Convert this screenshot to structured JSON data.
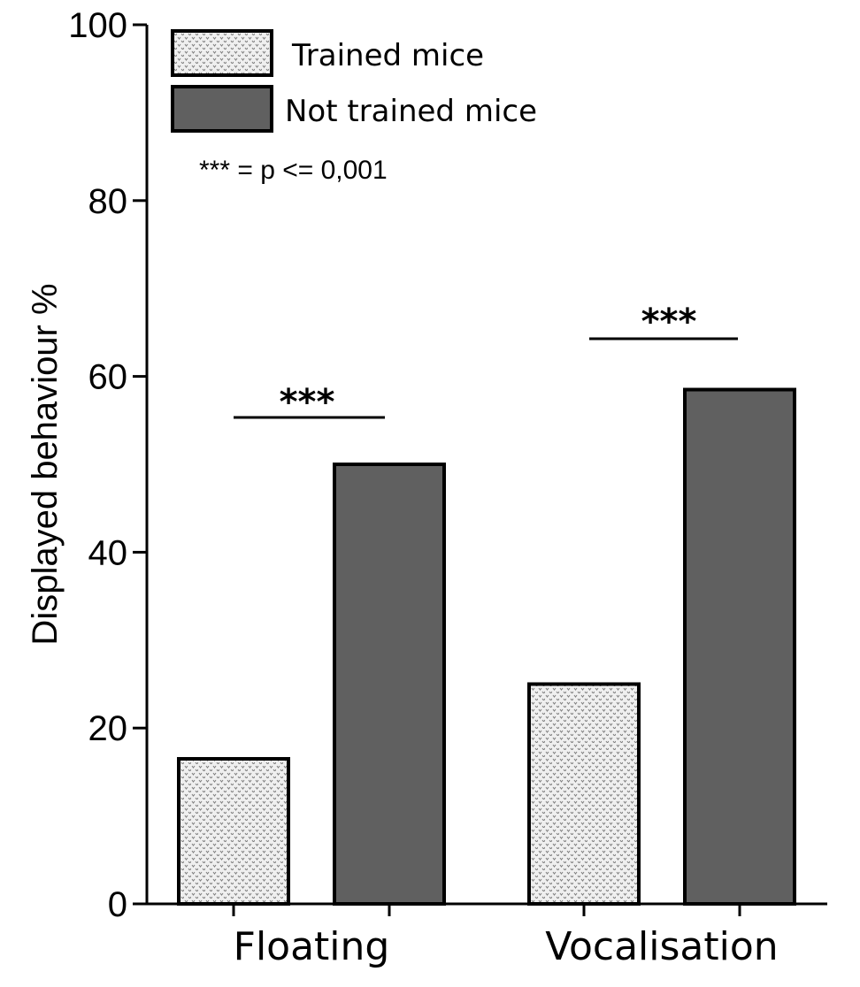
{
  "chart_data": {
    "type": "bar",
    "title": "",
    "xlabel": "",
    "ylabel": "Displayed behaviour %",
    "ylim": [
      0,
      100
    ],
    "yticks": [
      "0",
      "20",
      "40",
      "60",
      "80",
      "100"
    ],
    "categories": [
      "Floating",
      "Vocalisation"
    ],
    "series": [
      {
        "name": "Trained mice",
        "values": [
          16.5,
          25
        ],
        "pattern": "dotted",
        "color": "#e6e6e6"
      },
      {
        "name": "Not trained mice",
        "values": [
          50,
          58.5
        ],
        "pattern": "solid",
        "color": "#606060"
      }
    ],
    "legend_position": "top-left",
    "annotation": "*** = p <= 0,001",
    "significance": [
      {
        "category": "Floating",
        "label": "***"
      },
      {
        "category": "Vocalisation",
        "label": "***"
      }
    ]
  }
}
